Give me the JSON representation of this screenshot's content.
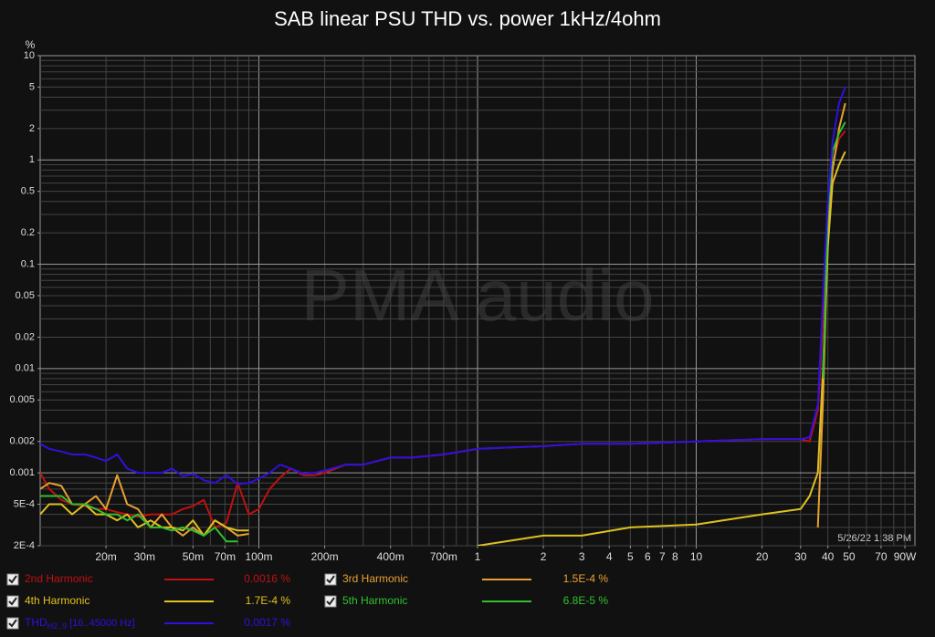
{
  "chart_data": {
    "type": "line",
    "title": "SAB linear PSU THD vs. power 1kHz/4ohm",
    "y_unit": "%",
    "watermark": "PMA audio",
    "timestamp": "5/26/22 1:38 PM",
    "log_x": true,
    "log_y": true,
    "grid": true,
    "xlim": [
      0.01,
      100
    ],
    "ylim": [
      0.0002,
      10
    ],
    "xticks": [
      {
        "value": 0.02,
        "label": "20m"
      },
      {
        "value": 0.03,
        "label": "30m"
      },
      {
        "value": 0.05,
        "label": "50m"
      },
      {
        "value": 0.07,
        "label": "70m"
      },
      {
        "value": 0.1,
        "label": "100m"
      },
      {
        "value": 0.2,
        "label": "200m"
      },
      {
        "value": 0.4,
        "label": "400m"
      },
      {
        "value": 0.7,
        "label": "700m"
      },
      1,
      2,
      3,
      4,
      5,
      6,
      7,
      8,
      10,
      20,
      30,
      40,
      50,
      70,
      {
        "value": 90,
        "label": "90W"
      }
    ],
    "yticks": [
      10,
      5,
      2,
      1,
      0.5,
      0.2,
      0.1,
      0.05,
      0.02,
      0.01,
      0.005,
      0.002,
      0.001,
      {
        "value": 0.0005,
        "label": "5E-4"
      },
      {
        "value": 0.0002,
        "label": "2E-4"
      }
    ],
    "x": [
      0.01,
      0.011,
      0.0125,
      0.014,
      0.016,
      0.018,
      0.02,
      0.0225,
      0.025,
      0.028,
      0.032,
      0.036,
      0.04,
      0.045,
      0.05,
      0.056,
      0.063,
      0.071,
      0.08,
      0.09,
      0.1,
      0.112,
      0.125,
      0.14,
      0.16,
      0.18,
      0.2,
      0.25,
      0.3,
      0.4,
      0.5,
      0.7,
      1,
      2,
      3,
      5,
      10,
      20,
      30,
      33,
      36,
      38,
      40,
      42,
      45,
      48
    ],
    "series": [
      {
        "name": "2nd Harmonic",
        "color": "#c01010",
        "legend_value": "0.0016 %",
        "values": [
          0.001,
          0.0007,
          0.00055,
          0.0005,
          0.00048,
          0.00045,
          0.00045,
          0.00042,
          0.0004,
          0.00038,
          0.0004,
          0.0004,
          0.0004,
          0.00045,
          0.00048,
          0.00055,
          0.0003,
          0.00033,
          0.0008,
          0.0004,
          0.00045,
          0.0007,
          0.0009,
          0.0011,
          0.00095,
          0.00095,
          0.001,
          0.0012,
          0.0012,
          0.0014,
          0.0014,
          0.0015,
          0.0017,
          0.0018,
          0.0019,
          0.0019,
          0.002,
          0.0021,
          0.0021,
          0.002,
          0.004,
          0.03,
          0.25,
          0.9,
          1.6,
          1.9
        ]
      },
      {
        "name": "3rd Harmonic",
        "color": "#e8a030",
        "legend_value": "1.5E-4 %",
        "values": [
          0.0007,
          0.0008,
          0.00075,
          0.0005,
          0.0005,
          0.0006,
          0.00045,
          0.00095,
          0.0005,
          0.00045,
          0.0003,
          0.0004,
          0.0003,
          0.00025,
          0.0003,
          0.00025,
          0.00035,
          0.0003,
          0.00025,
          0.00026,
          null,
          null,
          null,
          null,
          null,
          null,
          null,
          null,
          null,
          null,
          null,
          null,
          null,
          null,
          null,
          null,
          null,
          null,
          null,
          null,
          0.0003,
          0.005,
          0.2,
          0.8,
          2,
          3.5
        ]
      },
      {
        "name": "4th Harmonic",
        "color": "#e0c020",
        "legend_value": "1.7E-4 %",
        "values": [
          0.0004,
          0.0005,
          0.0005,
          0.0004,
          0.0005,
          0.0004,
          0.0004,
          0.00035,
          0.0004,
          0.0003,
          0.00035,
          0.0003,
          0.0003,
          0.00028,
          0.00035,
          0.00025,
          0.00035,
          0.0003,
          0.00028,
          0.00028,
          null,
          null,
          null,
          0.0003,
          null,
          null,
          null,
          null,
          null,
          null,
          null,
          null,
          0.0002,
          0.00025,
          0.00025,
          0.0003,
          0.00032,
          0.0004,
          0.00045,
          0.0006,
          0.001,
          0.01,
          0.15,
          0.6,
          0.9,
          1.2
        ]
      },
      {
        "name": "5th Harmonic",
        "color": "#30c030",
        "legend_value": "6.8E-5 %",
        "values": [
          0.0006,
          0.0006,
          0.0006,
          0.0005,
          0.0005,
          0.00045,
          0.0004,
          0.0004,
          0.00035,
          0.0004,
          0.0003,
          0.0003,
          0.00028,
          0.0003,
          0.00028,
          0.00025,
          0.0003,
          0.00022,
          0.00022,
          null,
          null,
          null,
          null,
          null,
          null,
          null,
          null,
          null,
          null,
          null,
          null,
          null,
          null,
          null,
          null,
          null,
          null,
          null,
          null,
          null,
          null,
          0.008,
          0.3,
          1.2,
          1.8,
          2.3
        ]
      },
      {
        "name": "THD",
        "name_sub": "H2..9",
        "name_note": "[16..45000 Hz]",
        "color": "#3010e0",
        "legend_value": "0.0017 %",
        "values": [
          0.0019,
          0.0017,
          0.0016,
          0.0015,
          0.0015,
          0.0014,
          0.0013,
          0.0015,
          0.0011,
          0.001,
          0.001,
          0.001,
          0.0011,
          0.00093,
          0.00098,
          0.00085,
          0.0008,
          0.00095,
          0.00078,
          0.0008,
          0.00088,
          0.001,
          0.0012,
          0.0011,
          0.00098,
          0.001,
          0.00105,
          0.0012,
          0.0012,
          0.0014,
          0.0014,
          0.0015,
          0.0017,
          0.0018,
          0.0019,
          0.0019,
          0.002,
          0.0021,
          0.0021,
          0.0022,
          0.0045,
          0.05,
          0.4,
          1.5,
          3.5,
          5
        ]
      }
    ]
  }
}
